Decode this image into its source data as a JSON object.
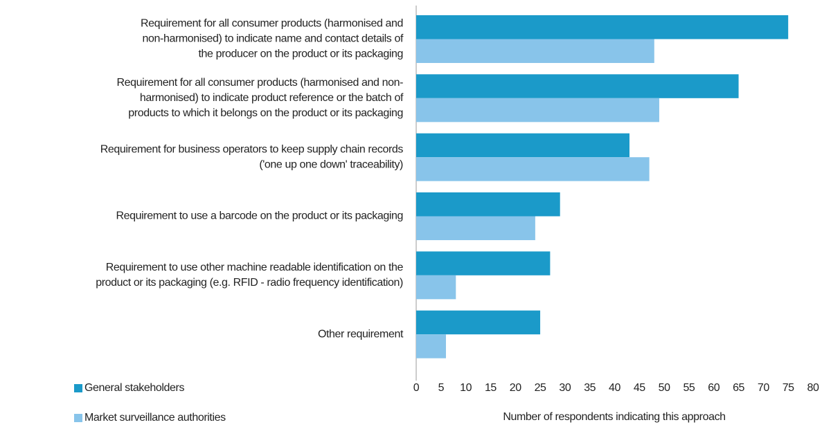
{
  "chart_data": {
    "type": "hbar",
    "categories": [
      [
        "Requirement for all consumer products (harmonised and",
        "non-harmonised) to indicate name and contact details of",
        "the producer on the product or its packaging"
      ],
      [
        "Requirement for all consumer products (harmonised and non-",
        "harmonised) to indicate product reference or the batch of",
        "products to which it belongs on the product or its packaging"
      ],
      [
        "Requirement for business operators to keep supply chain records",
        "('one up one down' traceability)"
      ],
      [
        "Requirement to use a barcode on the product or its packaging"
      ],
      [
        "Requirement to use other machine readable identification on the",
        "product or its packaging (e.g. RFID - radio frequency identification)"
      ],
      [
        "Other requirement"
      ]
    ],
    "series": [
      {
        "name": "General stakeholders",
        "color": "#1b9ac9",
        "values": [
          75,
          65,
          43,
          29,
          27,
          25
        ]
      },
      {
        "name": "Market surveillance authorities",
        "color": "#88c4ea",
        "values": [
          48,
          49,
          47,
          24,
          8,
          6
        ]
      }
    ],
    "xlabel": "Number of respondents indicating this approach",
    "xlim": [
      0,
      80
    ],
    "xticks": [
      0,
      5,
      10,
      15,
      20,
      25,
      30,
      35,
      40,
      45,
      50,
      55,
      60,
      65,
      70,
      75,
      80
    ],
    "grid": false,
    "legend": "bottom-left"
  }
}
